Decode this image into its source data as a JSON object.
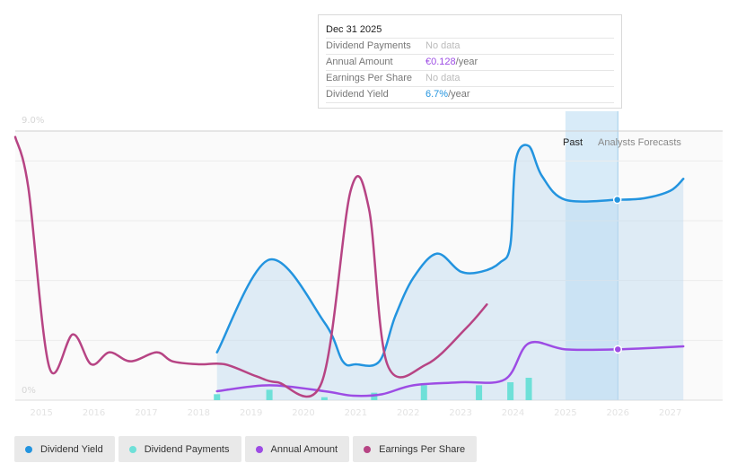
{
  "tooltip": {
    "date": "Dec 31 2025",
    "rows": [
      {
        "key": "Dividend Payments",
        "value": "No data",
        "unit": ""
      },
      {
        "key": "Annual Amount",
        "value": "€0.128",
        "unit": "/year"
      },
      {
        "key": "Earnings Per Share",
        "value": "No data",
        "unit": ""
      },
      {
        "key": "Dividend Yield",
        "value": "6.7%",
        "unit": "/year"
      }
    ]
  },
  "regions": {
    "past": "Past",
    "forecast": "Analysts Forecasts"
  },
  "legend": [
    {
      "label": "Dividend Yield",
      "color": "#2394df"
    },
    {
      "label": "Dividend Payments",
      "color": "#6ee0d8"
    },
    {
      "label": "Annual Amount",
      "color": "#9d4ce4"
    },
    {
      "label": "Earnings Per Share",
      "color": "#b74484"
    }
  ],
  "colors": {
    "yield": "#2394df",
    "payments": "#6ee0d8",
    "annual": "#9d4ce4",
    "eps": "#b74484",
    "past_band": "#d8ebf8"
  },
  "chart_data": {
    "type": "line",
    "y_tick_labels": [
      "0%",
      "9.0%"
    ],
    "ylim": [
      0,
      9
    ],
    "xlim": [
      2014.5,
      2028.0
    ],
    "x_ticks": [
      2015,
      2016,
      2017,
      2018,
      2019,
      2020,
      2021,
      2022,
      2023,
      2024,
      2025,
      2026,
      2027
    ],
    "past_start": 2025.0,
    "split": 2026.0,
    "series": [
      {
        "name": "Dividend Yield",
        "key": "yield",
        "points": [
          [
            2018.35,
            1.6
          ],
          [
            2019.35,
            4.7
          ],
          [
            2020.4,
            2.6
          ],
          [
            2020.75,
            1.3
          ],
          [
            2021.0,
            1.2
          ],
          [
            2021.45,
            1.3
          ],
          [
            2021.75,
            2.8
          ],
          [
            2022.1,
            4.1
          ],
          [
            2022.55,
            4.9
          ],
          [
            2023.0,
            4.3
          ],
          [
            2023.4,
            4.3
          ],
          [
            2023.75,
            4.6
          ],
          [
            2023.95,
            5.2
          ],
          [
            2024.05,
            8.0
          ],
          [
            2024.3,
            8.5
          ],
          [
            2024.55,
            7.5
          ],
          [
            2025.0,
            6.7
          ],
          [
            2025.99,
            6.7
          ],
          [
            2026.0,
            6.7
          ],
          [
            2026.5,
            6.75
          ],
          [
            2027.0,
            7.0
          ],
          [
            2027.25,
            7.4
          ]
        ]
      },
      {
        "name": "Annual Amount",
        "key": "annual",
        "points": [
          [
            2018.35,
            0.3
          ],
          [
            2019.35,
            0.5
          ],
          [
            2020.4,
            0.3
          ],
          [
            2020.95,
            0.15
          ],
          [
            2021.5,
            0.2
          ],
          [
            2022.1,
            0.5
          ],
          [
            2023.0,
            0.6
          ],
          [
            2023.85,
            0.7
          ],
          [
            2024.3,
            1.9
          ],
          [
            2025.0,
            1.7
          ],
          [
            2026.0,
            1.7
          ],
          [
            2027.25,
            1.8
          ]
        ]
      },
      {
        "name": "Earnings Per Share",
        "key": "eps",
        "points": [
          [
            2014.5,
            8.8
          ],
          [
            2014.75,
            7.1
          ],
          [
            2015.15,
            1.1
          ],
          [
            2015.6,
            2.2
          ],
          [
            2015.95,
            1.2
          ],
          [
            2016.3,
            1.6
          ],
          [
            2016.7,
            1.3
          ],
          [
            2017.2,
            1.6
          ],
          [
            2017.5,
            1.3
          ],
          [
            2018.0,
            1.2
          ],
          [
            2018.5,
            1.2
          ],
          [
            2019.1,
            0.8
          ],
          [
            2019.5,
            0.6
          ],
          [
            2020.35,
            0.6
          ],
          [
            2020.9,
            7.0
          ],
          [
            2021.25,
            6.4
          ],
          [
            2021.6,
            1.2
          ],
          [
            2022.35,
            1.2
          ],
          [
            2023.1,
            2.4
          ],
          [
            2023.5,
            3.2
          ]
        ]
      },
      {
        "name": "Dividend Payments",
        "key": "payments",
        "type": "bar",
        "points": [
          [
            2018.35,
            0.2
          ],
          [
            2019.35,
            0.35
          ],
          [
            2020.4,
            0.1
          ],
          [
            2021.35,
            0.25
          ],
          [
            2022.3,
            0.5
          ],
          [
            2023.35,
            0.5
          ],
          [
            2023.95,
            0.6
          ],
          [
            2024.3,
            0.75
          ]
        ]
      }
    ]
  }
}
